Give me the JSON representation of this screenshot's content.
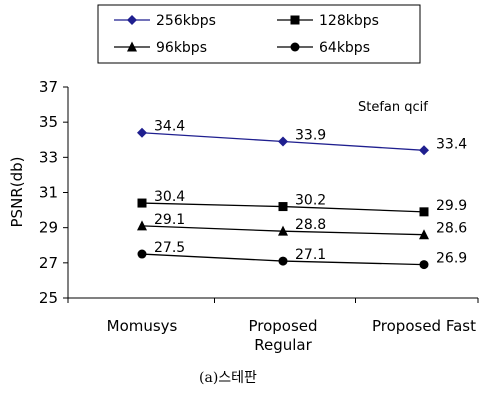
{
  "chart_data": {
    "type": "line",
    "categories": [
      "Momusys",
      "Proposed Regular",
      "Proposed Fast"
    ],
    "category_lines": [
      [
        "Momusys"
      ],
      [
        "Proposed",
        "Regular"
      ],
      [
        "Proposed Fast"
      ]
    ],
    "series": [
      {
        "name": "256kbps",
        "values": [
          34.4,
          33.9,
          33.4
        ],
        "labels": [
          "34.4",
          "33.9",
          "33.4"
        ],
        "marker": "diamond",
        "color": "#1f1f8f"
      },
      {
        "name": "128kbps",
        "values": [
          30.4,
          30.2,
          29.9
        ],
        "labels": [
          "30.4",
          "30.2",
          "29.9"
        ],
        "marker": "square",
        "color": "#000000"
      },
      {
        "name": "96kbps",
        "values": [
          29.1,
          28.8,
          28.6
        ],
        "labels": [
          "29.1",
          "28.8",
          "28.6"
        ],
        "marker": "triangle",
        "color": "#000000"
      },
      {
        "name": "64kbps",
        "values": [
          27.5,
          27.1,
          26.9
        ],
        "labels": [
          "27.5",
          "27.1",
          "26.9"
        ],
        "marker": "circle",
        "color": "#000000"
      }
    ],
    "ylabel": "PSNR(db)",
    "xlabel": "",
    "ylim": [
      25,
      37
    ],
    "yticks": [
      25,
      27,
      29,
      31,
      33,
      35,
      37
    ],
    "annotation": "Stefan qcif",
    "caption": "(a)스테판",
    "grid": false,
    "legend_position": "top"
  }
}
